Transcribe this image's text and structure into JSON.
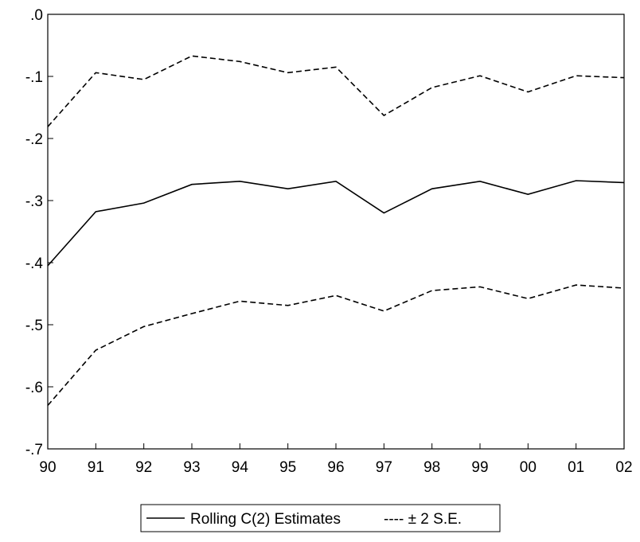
{
  "chart_data": {
    "type": "line",
    "title": "",
    "xlabel": "",
    "ylabel": "",
    "categories": [
      "90",
      "91",
      "92",
      "93",
      "94",
      "95",
      "96",
      "97",
      "98",
      "99",
      "00",
      "01",
      "02"
    ],
    "ylim": [
      -0.7,
      0.0
    ],
    "yticks": [
      ".0",
      "-.1",
      "-.2",
      "-.3",
      "-.4",
      "-.5",
      "-.6",
      "-.7"
    ],
    "ytick_values": [
      0.0,
      -0.1,
      -0.2,
      -0.3,
      -0.4,
      -0.5,
      -0.6,
      -0.7
    ],
    "grid": false,
    "legend_placement": "bottom",
    "series": [
      {
        "name": "Rolling C(2) Estimates",
        "style": "solid",
        "values": [
          -0.405,
          -0.318,
          -0.304,
          -0.274,
          -0.269,
          -0.281,
          -0.269,
          -0.32,
          -0.281,
          -0.269,
          -0.29,
          -0.268,
          -0.271
        ]
      },
      {
        "name": "± 2 S.E.",
        "style": "dashed",
        "values": [
          -0.181,
          -0.094,
          -0.105,
          -0.067,
          -0.076,
          -0.094,
          -0.085,
          -0.163,
          -0.118,
          -0.099,
          -0.125,
          -0.099,
          -0.102
        ]
      },
      {
        "name": "",
        "style": "dashed",
        "values": [
          -0.63,
          -0.541,
          -0.503,
          -0.482,
          -0.462,
          -0.469,
          -0.453,
          -0.478,
          -0.445,
          -0.439,
          -0.458,
          -0.436,
          -0.441
        ]
      }
    ],
    "legend": [
      {
        "label": "Rolling C(2) Estimates",
        "style": "solid"
      },
      {
        "label": "---- ± 2 S.E.",
        "style": "dashed"
      }
    ],
    "colors": {
      "line": "#000000",
      "background": "#ffffff"
    }
  }
}
